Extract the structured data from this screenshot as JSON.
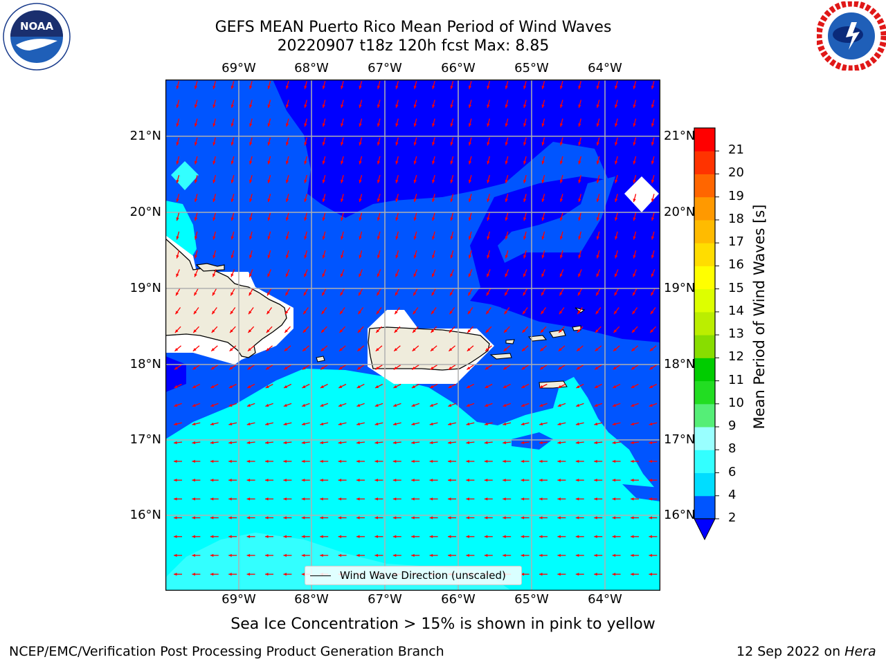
{
  "title": {
    "line1": "GEFS MEAN Puerto Rico Mean Period of Wind Waves",
    "line2": "20220907 t18z 120h fcst   Max: 8.85"
  },
  "logos": {
    "left": {
      "name": "noaa-logo",
      "text": "NOAA",
      "ring_text": "NATIONAL OCEANIC AND ATMOSPHERIC ADMINISTRATION · U.S. DEPARTMENT OF COMMERCE"
    },
    "right": {
      "name": "nws-logo",
      "ring_text": "NATIONAL WEATHER SERVICE"
    }
  },
  "map": {
    "lon_labels": [
      "69°W",
      "68°W",
      "67°W",
      "66°W",
      "65°W",
      "64°W"
    ],
    "lat_labels": [
      "21°N",
      "20°N",
      "19°N",
      "18°N",
      "17°N",
      "16°N"
    ],
    "legend": "Wind Wave Direction (unscaled)",
    "arrow_color": "#ff0000"
  },
  "colorbar": {
    "label": "Mean Period of Wind Waves [s]",
    "ticks": [
      "2",
      "4",
      "6",
      "8",
      "9",
      "10",
      "11",
      "12",
      "13",
      "14",
      "15",
      "16",
      "17",
      "18",
      "19",
      "20",
      "21"
    ],
    "colors": [
      "#0055ff",
      "#00ddff",
      "#33ffff",
      "#99ffff",
      "#55ee77",
      "#22dd22",
      "#00cc00",
      "#88dd00",
      "#bbee00",
      "#ddff00",
      "#ffff00",
      "#ffdd00",
      "#ffbb00",
      "#ff9900",
      "#ff6600",
      "#ff3300",
      "#ff0000"
    ],
    "extend_color": "#0000ff"
  },
  "caption": "Sea Ice Concentration > 15% is shown in pink to yellow",
  "footer": {
    "left": "NCEP/EMC/Verification Post Processing Product Generation Branch",
    "date": "12 Sep 2022 on ",
    "host": "Hera"
  }
}
